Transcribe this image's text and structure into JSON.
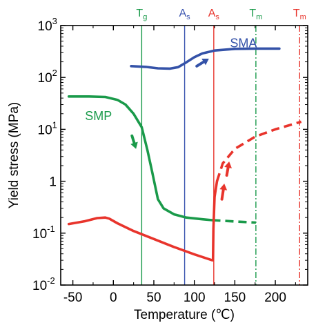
{
  "chart_data": {
    "type": "line",
    "xlabel": "Temperature (℃)",
    "ylabel": "Yield stress (MPa)",
    "xlim": [
      -65,
      240
    ],
    "ylim": [
      0.01,
      1000
    ],
    "yscale": "log",
    "x_ticks": [
      {
        "value": -50,
        "label": "-50"
      },
      {
        "value": 0,
        "label": "0"
      },
      {
        "value": 50,
        "label": "50"
      },
      {
        "value": 100,
        "label": "100"
      },
      {
        "value": 150,
        "label": "150"
      },
      {
        "value": 200,
        "label": "200"
      }
    ],
    "y_ticks": [
      {
        "value": 0.01,
        "base": "10",
        "exp": "-2"
      },
      {
        "value": 0.1,
        "base": "10",
        "exp": "-1"
      },
      {
        "value": 1,
        "base": "1",
        "exp": ""
      },
      {
        "value": 10,
        "base": "10",
        "exp": "1"
      },
      {
        "value": 100,
        "base": "10",
        "exp": "2"
      },
      {
        "value": 1000,
        "base": "10",
        "exp": "3"
      }
    ],
    "grid": false,
    "vertical_lines": [
      {
        "x": 35,
        "label": "T",
        "sub": "g",
        "color": "#1a9a4a",
        "dash": false
      },
      {
        "x": 88,
        "label": "A",
        "sub": "s",
        "color": "#3b55b0",
        "dash": false
      },
      {
        "x": 124,
        "label": "A",
        "sub": "s",
        "color": "#e8342c",
        "dash": false
      },
      {
        "x": 176,
        "label": "T",
        "sub": "m",
        "color": "#1a9a4a",
        "dash": true
      },
      {
        "x": 230,
        "label": "T",
        "sub": "m",
        "color": "#e8342c",
        "dash": true
      }
    ],
    "series": [
      {
        "name": "SMA",
        "color": "#3452a8",
        "segments": [
          {
            "dashed": false,
            "points": [
              [
                22,
                165
              ],
              [
                40,
                160
              ],
              [
                55,
                150
              ],
              [
                70,
                148
              ],
              [
                80,
                158
              ],
              [
                90,
                195
              ],
              [
                100,
                245
              ],
              [
                110,
                290
              ],
              [
                125,
                330
              ],
              [
                150,
                355
              ],
              [
                175,
                360
              ],
              [
                205,
                360
              ]
            ]
          }
        ]
      },
      {
        "name": "SMP",
        "color": "#1a9a4a",
        "segments": [
          {
            "dashed": false,
            "points": [
              [
                -55,
                43
              ],
              [
                -30,
                43
              ],
              [
                -10,
                42
              ],
              [
                5,
                37
              ],
              [
                15,
                30
              ],
              [
                25,
                20
              ],
              [
                35,
                11
              ],
              [
                42,
                4
              ],
              [
                48,
                1.5
              ],
              [
                55,
                0.45
              ],
              [
                62,
                0.3
              ],
              [
                75,
                0.23
              ],
              [
                90,
                0.2
              ],
              [
                110,
                0.185
              ],
              [
                122,
                0.178
              ]
            ]
          },
          {
            "dashed": true,
            "points": [
              [
                122,
                0.178
              ],
              [
                150,
                0.168
              ],
              [
                176,
                0.16
              ]
            ]
          }
        ]
      },
      {
        "name": "",
        "color": "#e8342c",
        "segments": [
          {
            "dashed": false,
            "points": [
              [
                -55,
                0.15
              ],
              [
                -35,
                0.17
              ],
              [
                -20,
                0.195
              ],
              [
                -10,
                0.2
              ],
              [
                -5,
                0.19
              ],
              [
                5,
                0.155
              ],
              [
                25,
                0.11
              ],
              [
                50,
                0.077
              ],
              [
                75,
                0.054
              ],
              [
                100,
                0.039
              ],
              [
                122,
                0.03
              ],
              [
                123,
                0.03
              ],
              [
                123.5,
                0.12
              ],
              [
                125,
                0.5
              ],
              [
                128,
                1.0
              ]
            ]
          },
          {
            "dashed": true,
            "points": [
              [
                128,
                1.0
              ],
              [
                135,
                2.2
              ],
              [
                150,
                4.2
              ],
              [
                175,
                7.2
              ],
              [
                200,
                10.0
              ],
              [
                232,
                14.0
              ]
            ]
          }
        ]
      }
    ],
    "annotations": [
      {
        "text": "SMA",
        "x": 144,
        "y": 380,
        "color": "#3452a8"
      },
      {
        "text": "SMP",
        "x": -35,
        "y": 15,
        "color": "#1a9a4a"
      }
    ],
    "arrows": [
      {
        "color": "#3452a8",
        "from": [
          103,
          165
        ],
        "to": [
          118,
          230
        ]
      },
      {
        "color": "#1a9a4a",
        "from": [
          23,
          7.5
        ],
        "to": [
          28,
          4.2
        ]
      },
      {
        "color": "#e8342c",
        "from": [
          134,
          0.45
        ],
        "to": [
          137,
          0.9
        ]
      },
      {
        "color": "#e8342c",
        "from": [
          140,
          1.3
        ],
        "to": [
          143,
          2.4
        ]
      }
    ]
  }
}
